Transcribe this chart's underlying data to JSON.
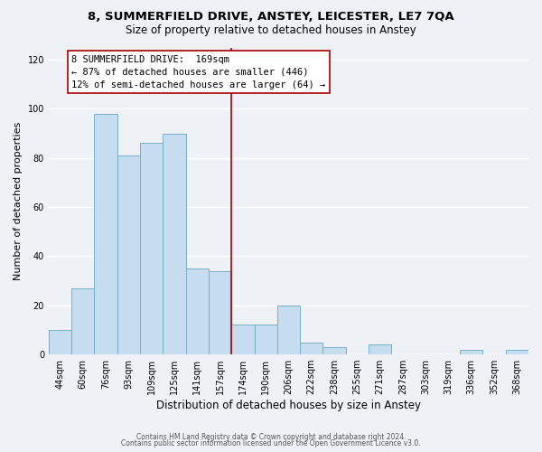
{
  "title1": "8, SUMMERFIELD DRIVE, ANSTEY, LEICESTER, LE7 7QA",
  "title2": "Size of property relative to detached houses in Anstey",
  "xlabel": "Distribution of detached houses by size in Anstey",
  "ylabel": "Number of detached properties",
  "bar_labels": [
    "44sqm",
    "60sqm",
    "76sqm",
    "93sqm",
    "109sqm",
    "125sqm",
    "141sqm",
    "157sqm",
    "174sqm",
    "190sqm",
    "206sqm",
    "222sqm",
    "238sqm",
    "255sqm",
    "271sqm",
    "287sqm",
    "303sqm",
    "319sqm",
    "336sqm",
    "352sqm",
    "368sqm"
  ],
  "bar_values": [
    10,
    27,
    98,
    81,
    86,
    90,
    35,
    34,
    12,
    12,
    20,
    5,
    3,
    0,
    4,
    0,
    0,
    0,
    2,
    0,
    2
  ],
  "bar_color": "#c5ddef",
  "bar_edge_color": "#7aafc8",
  "ylim": [
    0,
    125
  ],
  "yticks": [
    0,
    20,
    40,
    60,
    80,
    100,
    120
  ],
  "prop_line_label": "8 SUMMERFIELD DRIVE:  169sqm",
  "annotation_line1": "← 87% of detached houses are smaller (446)",
  "annotation_line2": "12% of semi-detached houses are larger (64) →",
  "footer1": "Contains HM Land Registry data © Crown copyright and database right 2024.",
  "footer2": "Contains public sector information licensed under the Open Government Licence v3.0.",
  "background_color": "#eef2f7",
  "grid_color": "#ffffff",
  "title1_fontsize": 9.5,
  "title2_fontsize": 8.5,
  "tick_fontsize": 7,
  "xlabel_fontsize": 8.5,
  "ylabel_fontsize": 8,
  "annotation_fontsize": 7.5,
  "footer_fontsize": 5.5
}
